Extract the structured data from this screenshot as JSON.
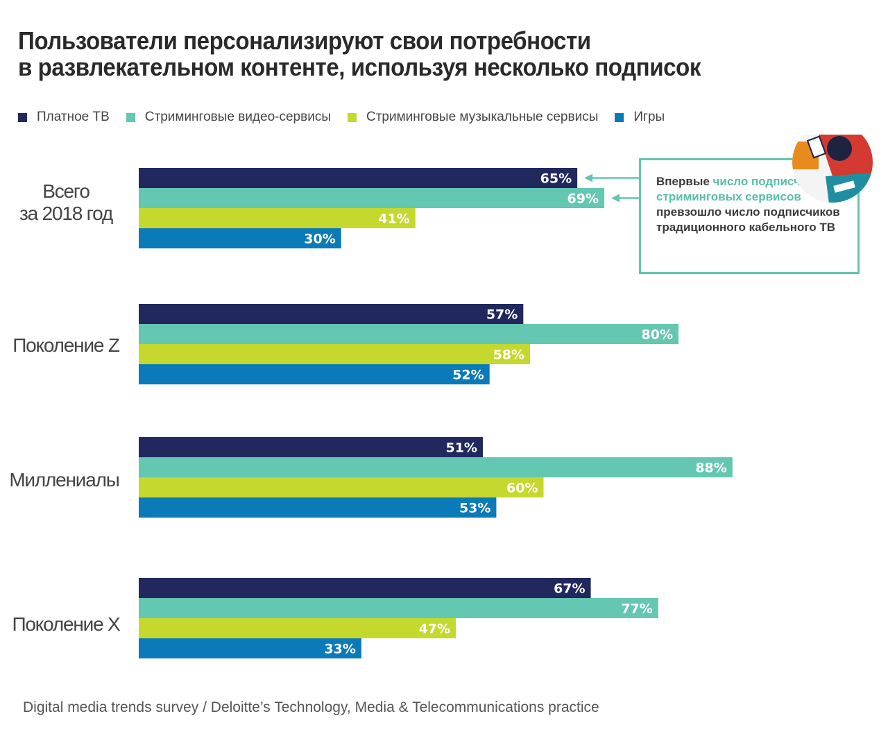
{
  "title_lines": [
    "Пользователи персонализируют свои потребности",
    "в развлекательном контенте, используя несколько подписок"
  ],
  "legend": [
    {
      "label": "Платное ТВ",
      "color": "#20285e"
    },
    {
      "label": "Стриминговые видео-сервисы",
      "color": "#63c7b2"
    },
    {
      "label": "Стриминговые музыкальные сервисы",
      "color": "#c5d82e"
    },
    {
      "label": "Игры",
      "color": "#0a7ab8"
    }
  ],
  "callout": {
    "part1": "Впервые ",
    "highlight": "число подписчиков стриминговых сервисов",
    "part2": " превзошло число подписчиков традиционного кабельного ТВ"
  },
  "source": "Digital media trends survey / Deloitte’s Technology, Media & Telecommunications practice",
  "chart_data": {
    "type": "bar",
    "orientation": "horizontal",
    "categories": [
      [
        "Всего",
        "за 2018 год"
      ],
      [
        "Поколение Z"
      ],
      [
        "Миллениалы"
      ],
      [
        "Поколение X"
      ]
    ],
    "series": [
      {
        "name": "Платное ТВ",
        "color": "#20285e",
        "values": [
          65,
          57,
          51,
          67
        ]
      },
      {
        "name": "Стриминговые видео-сервисы",
        "color": "#63c7b2",
        "values": [
          69,
          80,
          88,
          77
        ]
      },
      {
        "name": "Стриминговые музыкальные сервисы",
        "color": "#c5d82e",
        "values": [
          41,
          58,
          60,
          47
        ]
      },
      {
        "name": "Игры",
        "color": "#0a7ab8",
        "values": [
          30,
          52,
          53,
          33
        ]
      }
    ],
    "unit": "%",
    "xlim": [
      0,
      100
    ],
    "grid": false,
    "legend_position": "top-left"
  }
}
